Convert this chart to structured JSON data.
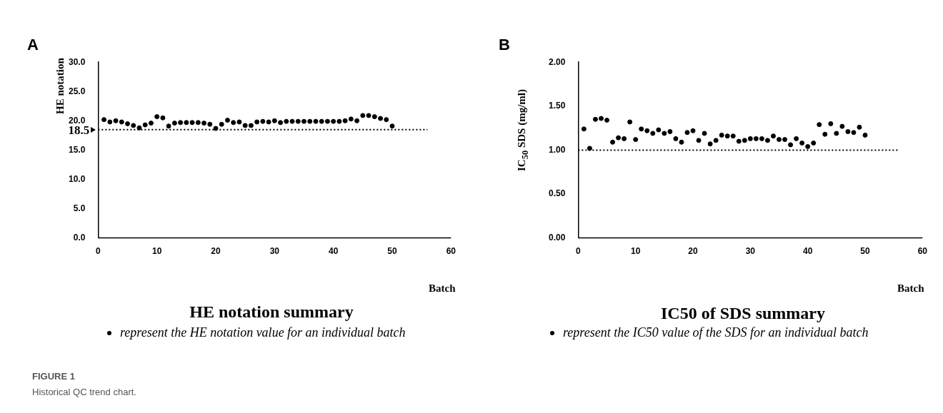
{
  "chart_data": [
    {
      "type": "scatter",
      "title": "HE notation summary",
      "xlabel": "Batch",
      "ylabel": "HE notation",
      "annotations": [
        "A",
        "FIGURE 1",
        "Historical QC trend chart."
      ],
      "x": [
        1,
        2,
        3,
        4,
        5,
        6,
        7,
        8,
        9,
        10,
        11,
        12,
        13,
        14,
        15,
        16,
        17,
        18,
        19,
        20,
        21,
        22,
        23,
        24,
        25,
        26,
        27,
        28,
        29,
        30,
        31,
        32,
        33,
        34,
        35,
        36,
        37,
        38,
        39,
        40,
        41,
        42,
        43,
        44,
        45,
        46,
        47,
        48,
        49,
        50
      ],
      "series": [
        {
          "name": "represent the HE notation value for an individual batch",
          "color": "#000000",
          "values": [
            20.2,
            19.8,
            20.0,
            19.8,
            19.5,
            19.2,
            18.8,
            19.3,
            19.6,
            20.7,
            20.5,
            19.1,
            19.6,
            19.7,
            19.7,
            19.7,
            19.7,
            19.6,
            19.4,
            18.7,
            19.4,
            20.1,
            19.7,
            19.8,
            19.2,
            19.2,
            19.8,
            19.9,
            19.8,
            20.0,
            19.7,
            19.9,
            19.9,
            19.9,
            19.9,
            19.9,
            19.9,
            19.9,
            19.9,
            19.9,
            19.9,
            20.0,
            20.3,
            20.0,
            20.9,
            20.9,
            20.7,
            20.4,
            20.2,
            19.1
          ]
        }
      ],
      "xlim": [
        0,
        60
      ],
      "xticks": [
        0,
        10,
        20,
        30,
        40,
        50,
        60
      ],
      "ylim": [
        0,
        30
      ],
      "yticks": [
        {
          "value": 0,
          "label": "0.0"
        },
        {
          "value": 5,
          "label": "5.0"
        },
        {
          "value": 10,
          "label": "10.0"
        },
        {
          "value": 15,
          "label": "15.0"
        },
        {
          "value": 20,
          "label": "20.0"
        },
        {
          "value": 25,
          "label": "25.0"
        },
        {
          "value": 30,
          "label": "30.0"
        }
      ],
      "ref_lines": [
        {
          "axis": "y",
          "value": 18.5,
          "label": "18.5",
          "line_style": "dotted",
          "color": "#000000"
        }
      ],
      "marker": "circle",
      "legend": "bottom"
    },
    {
      "type": "scatter",
      "title": "IC50 of SDS summary",
      "xlabel": "Batch",
      "ylabel": "IC$_{50}$ SDS (mg/ml)",
      "annotations": [
        "B"
      ],
      "x": [
        1,
        2,
        3,
        4,
        5,
        6,
        7,
        8,
        9,
        10,
        11,
        12,
        13,
        14,
        15,
        16,
        17,
        18,
        19,
        20,
        21,
        22,
        23,
        24,
        25,
        26,
        27,
        28,
        29,
        30,
        31,
        32,
        33,
        34,
        35,
        36,
        37,
        38,
        39,
        40,
        41,
        42,
        43,
        44,
        45,
        46,
        47,
        48,
        49,
        50
      ],
      "series": [
        {
          "name": "represent the IC50 value of the SDS for an individual batch",
          "color": "#000000",
          "values": [
            1.24,
            1.02,
            1.35,
            1.36,
            1.34,
            1.09,
            1.14,
            1.13,
            1.32,
            1.12,
            1.24,
            1.22,
            1.19,
            1.23,
            1.19,
            1.21,
            1.13,
            1.09,
            1.2,
            1.22,
            1.11,
            1.19,
            1.07,
            1.11,
            1.17,
            1.16,
            1.16,
            1.1,
            1.11,
            1.13,
            1.13,
            1.13,
            1.11,
            1.16,
            1.12,
            1.12,
            1.06,
            1.13,
            1.08,
            1.04,
            1.08,
            1.29,
            1.18,
            1.3,
            1.19,
            1.27,
            1.21,
            1.2,
            1.26,
            1.17
          ]
        }
      ],
      "xlim": [
        0,
        60
      ],
      "xticks": [
        0,
        10,
        20,
        30,
        40,
        50,
        60
      ],
      "ylim": [
        0,
        2
      ],
      "yticks": [
        {
          "value": 0,
          "label": "0.00"
        },
        {
          "value": 0.5,
          "label": "0.50"
        },
        {
          "value": 1,
          "label": "1.00"
        },
        {
          "value": 1.5,
          "label": "1.50"
        },
        {
          "value": 2,
          "label": "2.00"
        }
      ],
      "ref_lines": [
        {
          "axis": "y",
          "value": 1,
          "line_style": "dotted",
          "color": "#000000"
        }
      ],
      "marker": "circle",
      "legend": "bottom"
    }
  ]
}
